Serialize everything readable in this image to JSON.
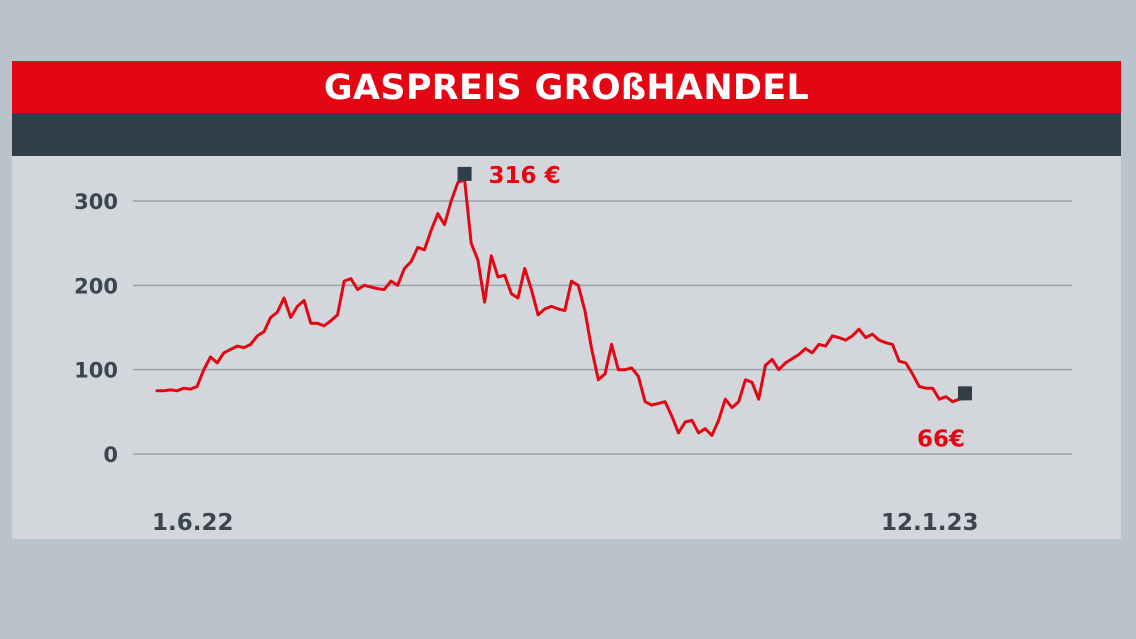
{
  "header": {
    "title": "GASPREIS GROßHANDEL"
  },
  "colors": {
    "accent": "#e30613",
    "dark": "#313d47",
    "panel": "#d3d7db",
    "grid": "#9aa3ab"
  },
  "chart_data": {
    "type": "line",
    "title": "GASPREIS GROßHANDEL",
    "x_start_label": "1.6.22",
    "x_end_label": "12.1.23",
    "ylim": [
      0,
      300
    ],
    "yticks": [
      0,
      100,
      200,
      300
    ],
    "grid": true,
    "peak_label": "316 €",
    "end_label": "66€",
    "series": [
      {
        "color": "#e30613",
        "values": [
          75,
          75,
          76,
          75,
          78,
          77,
          80,
          100,
          115,
          108,
          120,
          124,
          128,
          126,
          130,
          140,
          145,
          162,
          168,
          185,
          162,
          175,
          182,
          155,
          155,
          152,
          158,
          165,
          205,
          208,
          195,
          200,
          198,
          196,
          195,
          205,
          200,
          220,
          228,
          245,
          242,
          265,
          285,
          272,
          300,
          322,
          325,
          250,
          230,
          180,
          235,
          210,
          212,
          190,
          185,
          220,
          195,
          165,
          172,
          175,
          172,
          170,
          205,
          200,
          170,
          125,
          88,
          95,
          130,
          100,
          100,
          102,
          92,
          62,
          58,
          60,
          62,
          45,
          25,
          38,
          40,
          25,
          30,
          22,
          40,
          65,
          55,
          62,
          88,
          85,
          65,
          105,
          112,
          100,
          108,
          113,
          118,
          125,
          120,
          130,
          128,
          140,
          138,
          135,
          140,
          148,
          138,
          142,
          135,
          132,
          130,
          110,
          108,
          95,
          80,
          78,
          78,
          65,
          68,
          62,
          65,
          66
        ]
      }
    ]
  }
}
